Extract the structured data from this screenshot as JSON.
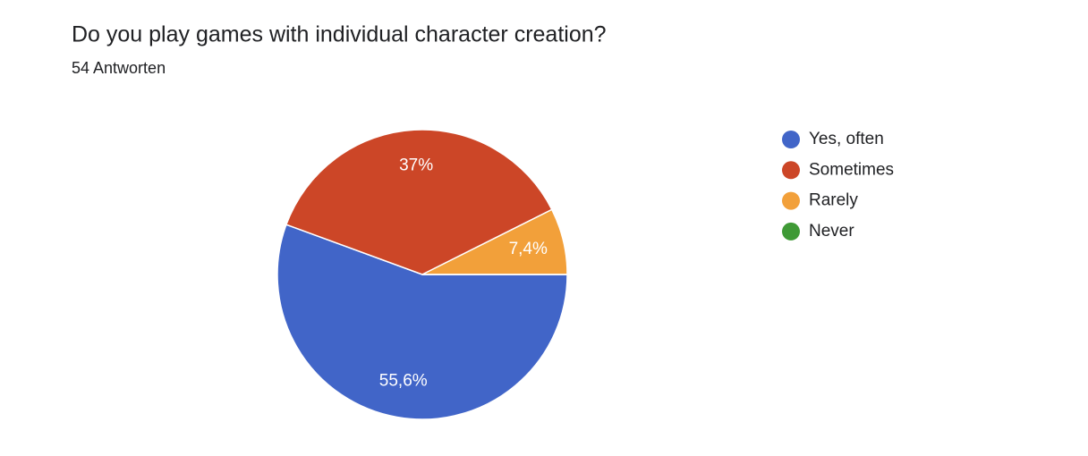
{
  "chart_data": {
    "type": "pie",
    "title": "Do you play games with individual character creation?",
    "subtitle": "54 Antworten",
    "categories": [
      "Yes, often",
      "Sometimes",
      "Rarely",
      "Never"
    ],
    "values": [
      55.6,
      37,
      7.4,
      0
    ],
    "value_labels": [
      "55,6%",
      "37%",
      "7,4%",
      null
    ],
    "colors": [
      "#4165c8",
      "#cc4627",
      "#f2a03a",
      "#3f9a36"
    ],
    "legend": "right"
  }
}
